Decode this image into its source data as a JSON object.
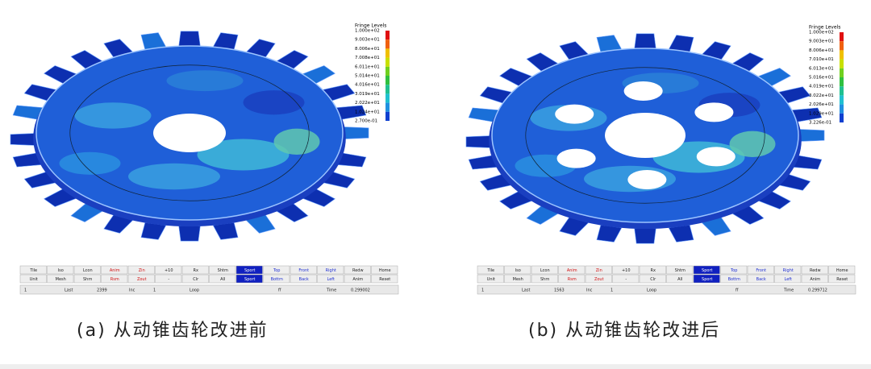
{
  "panels": [
    {
      "legend": {
        "title": "Fringe Levels",
        "levels": [
          "1.000e+02",
          "9.003e+01",
          "8.006e+01",
          "7.008e+01",
          "6.011e+01",
          "5.014e+01",
          "4.016e+01",
          "3.019e+01",
          "2.022e+01",
          "1.024e+01",
          "2.700e-01"
        ]
      },
      "toolbar": {
        "row1": [
          "Tile",
          "Iso",
          "Lcon",
          "Anim",
          "Zin",
          "+10",
          "Rx",
          "Shtm",
          "Sport",
          "Top",
          "Front",
          "Right",
          "Redw",
          "Home"
        ],
        "row2": [
          "Unit",
          "Mesh",
          "Shrn",
          "Rsm",
          "Zout",
          "-",
          "Clr",
          "All",
          "Sport",
          "Bottm",
          "Back",
          "Left",
          "Anim",
          "Reset"
        ]
      },
      "status": [
        "1",
        "Last",
        "2399",
        "Inc",
        "1",
        "Loop",
        "ff",
        "Time",
        "0.299002"
      ],
      "caption": "(a)  从动锥齿轮改进前"
    },
    {
      "legend": {
        "title": "Fringe Levels",
        "levels": [
          "1.000e+02",
          "9.003e+01",
          "8.006e+01",
          "7.010e+01",
          "6.013e+01",
          "5.016e+01",
          "4.019e+01",
          "3.022e+01",
          "2.026e+01",
          "1.029e+01",
          "3.226e-01"
        ]
      },
      "toolbar": {
        "row1": [
          "Tile",
          "Iso",
          "Lcon",
          "Anim",
          "Zin",
          "+10",
          "Rx",
          "Shtm",
          "Sport",
          "Top",
          "Front",
          "Right",
          "Redw",
          "Home"
        ],
        "row2": [
          "Unit",
          "Mesh",
          "Shrn",
          "Rsm",
          "Zout",
          "-",
          "Clr",
          "All",
          "Sport",
          "Bottm",
          "Back",
          "Left",
          "Anim",
          "Reset"
        ]
      },
      "status": [
        "1",
        "Last",
        "1563",
        "Inc",
        "1",
        "Loop",
        "ff",
        "Time",
        "0.299712"
      ],
      "caption": "(b)  从动锥齿轮改进后"
    }
  ]
}
